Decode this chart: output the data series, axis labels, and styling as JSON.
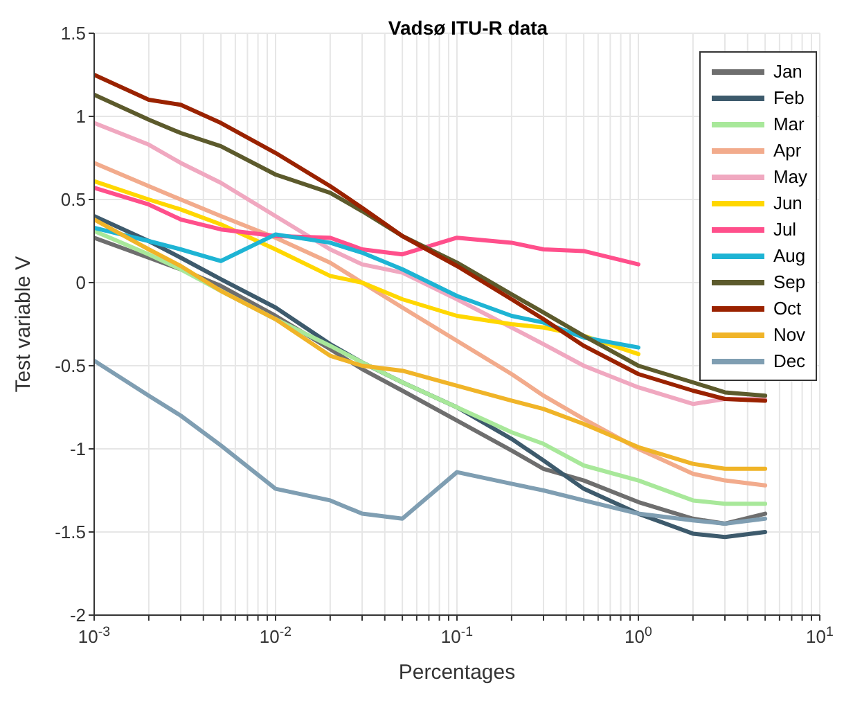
{
  "chart_data": {
    "type": "line",
    "title": "Vadsø ITU-R data",
    "xlabel": "Percentages",
    "ylabel": "Test variable V",
    "log": "x",
    "grid": true,
    "legend": "top right",
    "line_style": "solid",
    "marker": "none",
    "x": [
      0.001,
      0.002,
      0.003,
      0.005,
      0.01,
      0.02,
      0.03,
      0.05,
      0.1,
      0.2,
      0.3,
      0.5,
      1,
      2,
      3,
      5
    ],
    "xlim": [
      0.001,
      10
    ],
    "xticks": [
      {
        "value": 0.001,
        "label": "10$^{-3}$"
      },
      {
        "value": 0.002,
        "label": null
      },
      {
        "value": 0.003,
        "label": null
      },
      {
        "value": 0.004,
        "label": null
      },
      {
        "value": 0.005,
        "label": null
      },
      {
        "value": 0.006,
        "label": null
      },
      {
        "value": 0.007,
        "label": null
      },
      {
        "value": 0.008,
        "label": null
      },
      {
        "value": 0.009,
        "label": null
      },
      {
        "value": 0.01,
        "label": "10$^{-2}$"
      },
      {
        "value": 0.02,
        "label": null
      },
      {
        "value": 0.03,
        "label": null
      },
      {
        "value": 0.04,
        "label": null
      },
      {
        "value": 0.05,
        "label": null
      },
      {
        "value": 0.06,
        "label": null
      },
      {
        "value": 0.07,
        "label": null
      },
      {
        "value": 0.08,
        "label": null
      },
      {
        "value": 0.09,
        "label": null
      },
      {
        "value": 0.1,
        "label": "10$^{-1}$"
      },
      {
        "value": 0.2,
        "label": null
      },
      {
        "value": 0.3,
        "label": null
      },
      {
        "value": 0.4,
        "label": null
      },
      {
        "value": 0.5,
        "label": null
      },
      {
        "value": 0.6,
        "label": null
      },
      {
        "value": 0.7,
        "label": null
      },
      {
        "value": 0.8,
        "label": null
      },
      {
        "value": 0.9,
        "label": null
      },
      {
        "value": 1,
        "label": "10$^{0}$"
      },
      {
        "value": 2,
        "label": null
      },
      {
        "value": 3,
        "label": null
      },
      {
        "value": 4,
        "label": null
      },
      {
        "value": 5,
        "label": null
      },
      {
        "value": 6,
        "label": null
      },
      {
        "value": 7,
        "label": null
      },
      {
        "value": 8,
        "label": null
      },
      {
        "value": 9,
        "label": null
      },
      {
        "value": 10,
        "label": "10$^{1}$"
      }
    ],
    "ylim": [
      -2,
      1.5
    ],
    "yticks": [
      -2,
      -1.5,
      -1,
      -0.5,
      0,
      0.5,
      1,
      1.5
    ],
    "series": [
      {
        "name": "Jan",
        "color": "#6e6e6e",
        "values": [
          0.27,
          0.15,
          0.08,
          -0.02,
          -0.2,
          -0.4,
          -0.52,
          -0.65,
          -0.83,
          -1.01,
          -1.12,
          -1.19,
          -1.32,
          -1.42,
          -1.45,
          -1.39
        ]
      },
      {
        "name": "Feb",
        "color": "#3d5a6c",
        "values": [
          0.4,
          0.25,
          0.15,
          0.02,
          -0.15,
          -0.37,
          -0.48,
          -0.6,
          -0.75,
          -0.94,
          -1.07,
          -1.24,
          -1.39,
          -1.51,
          -1.53,
          -1.5
        ]
      },
      {
        "name": "Mar",
        "color": "#a8e89a",
        "values": [
          0.31,
          0.17,
          0.08,
          -0.05,
          -0.22,
          -0.38,
          -0.48,
          -0.6,
          -0.75,
          -0.9,
          -0.97,
          -1.1,
          -1.19,
          -1.31,
          -1.33,
          -1.33
        ]
      },
      {
        "name": "Apr",
        "color": "#f2ab8c",
        "values": [
          0.72,
          0.58,
          0.5,
          0.4,
          0.27,
          0.12,
          0.0,
          -0.15,
          -0.35,
          -0.55,
          -0.68,
          -0.82,
          -1.0,
          -1.15,
          -1.19,
          -1.22
        ]
      },
      {
        "name": "May",
        "color": "#f0a8c0",
        "values": [
          0.96,
          0.83,
          0.72,
          0.6,
          0.4,
          0.2,
          0.11,
          0.06,
          -0.1,
          -0.27,
          -0.37,
          -0.5,
          -0.63,
          -0.73,
          -0.7,
          -0.7
        ]
      },
      {
        "name": "Jun",
        "color": "#ffd700",
        "values": [
          0.61,
          0.5,
          0.44,
          0.35,
          0.2,
          0.04,
          0.0,
          -0.1,
          -0.2,
          -0.25,
          -0.27,
          -0.32,
          -0.43,
          null,
          null,
          null
        ]
      },
      {
        "name": "Jul",
        "color": "#ff4f8b",
        "values": [
          0.57,
          0.47,
          0.38,
          0.32,
          0.28,
          0.27,
          0.2,
          0.17,
          0.27,
          0.24,
          0.2,
          0.19,
          0.11,
          null,
          null,
          null
        ]
      },
      {
        "name": "Aug",
        "color": "#1eb4d4",
        "values": [
          0.33,
          0.25,
          0.2,
          0.13,
          0.29,
          0.24,
          0.18,
          0.08,
          -0.08,
          -0.2,
          -0.24,
          -0.33,
          -0.39,
          null,
          null,
          null
        ]
      },
      {
        "name": "Sep",
        "color": "#5c5a2c",
        "values": [
          1.13,
          0.98,
          0.9,
          0.82,
          0.65,
          0.54,
          0.43,
          0.28,
          0.12,
          -0.07,
          -0.18,
          -0.32,
          -0.5,
          -0.6,
          -0.66,
          -0.68
        ]
      },
      {
        "name": "Oct",
        "color": "#9a2200",
        "values": [
          1.25,
          1.1,
          1.07,
          0.96,
          0.78,
          0.58,
          0.45,
          0.28,
          0.1,
          -0.1,
          -0.22,
          -0.38,
          -0.55,
          -0.65,
          -0.7,
          -0.71
        ]
      },
      {
        "name": "Nov",
        "color": "#f0b428",
        "values": [
          0.38,
          0.2,
          0.1,
          -0.05,
          -0.22,
          -0.44,
          -0.5,
          -0.53,
          -0.62,
          -0.71,
          -0.76,
          -0.85,
          -0.99,
          -1.09,
          -1.12,
          -1.12
        ]
      },
      {
        "name": "Dec",
        "color": "#7f9eb2",
        "values": [
          -0.47,
          -0.68,
          -0.8,
          -0.98,
          -1.24,
          -1.31,
          -1.39,
          -1.42,
          -1.14,
          -1.21,
          -1.25,
          -1.31,
          -1.39,
          -1.43,
          -1.45,
          -1.42
        ]
      }
    ]
  }
}
